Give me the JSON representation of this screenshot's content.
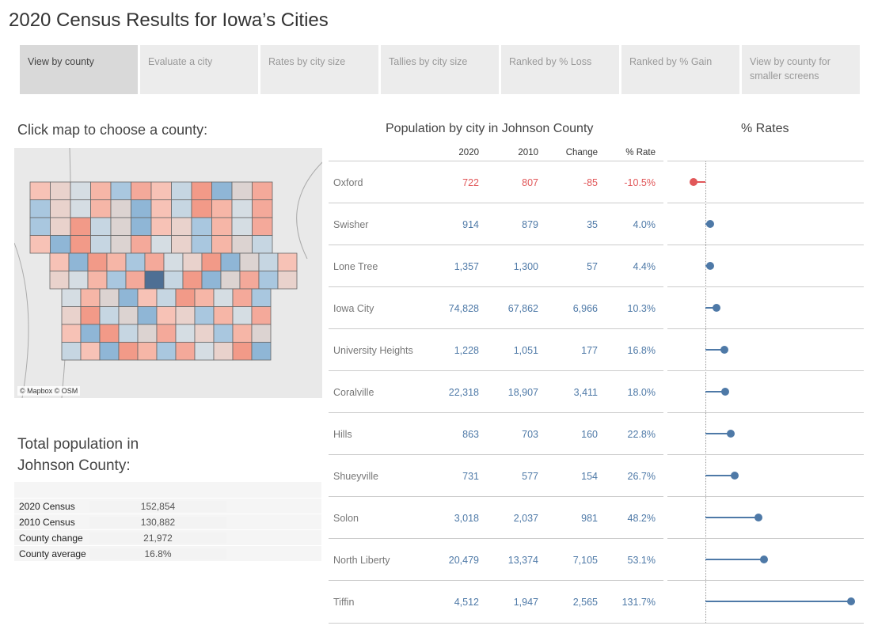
{
  "title": "2020 Census Results for Iowa’s Cities",
  "tabs": [
    "View by county",
    "Evaluate a city",
    "Rates by city size",
    "Tallies by city size",
    "Ranked by % Loss",
    "Ranked by % Gain",
    "View by county for smaller screens"
  ],
  "map": {
    "heading": "Click map to choose a county:",
    "attribution": "© Mapbox © OSM",
    "selected_county": "Johnson"
  },
  "totals": {
    "heading_line1": "Total population in",
    "heading_line2": "Johnson County:",
    "rows": [
      {
        "k": "2020 Census",
        "v": "152,854"
      },
      {
        "k": "2010 Census",
        "v": "130,882"
      },
      {
        "k": "County change",
        "v": "21,972"
      },
      {
        "k": "County average",
        "v": "16.8%"
      }
    ]
  },
  "table": {
    "heading": "Population by city in Johnson County",
    "columns": [
      "2020",
      "2010",
      "Change",
      "% Rate"
    ],
    "rows": [
      {
        "city": "Oxford",
        "p2020": "722",
        "p2010": "807",
        "change": "-85",
        "rate": "-10.5%",
        "r": -10.5
      },
      {
        "city": "Swisher",
        "p2020": "914",
        "p2010": "879",
        "change": "35",
        "rate": "4.0%",
        "r": 4.0
      },
      {
        "city": "Lone Tree",
        "p2020": "1,357",
        "p2010": "1,300",
        "change": "57",
        "rate": "4.4%",
        "r": 4.4
      },
      {
        "city": "Iowa City",
        "p2020": "74,828",
        "p2010": "67,862",
        "change": "6,966",
        "rate": "10.3%",
        "r": 10.3
      },
      {
        "city": "University Heights",
        "p2020": "1,228",
        "p2010": "1,051",
        "change": "177",
        "rate": "16.8%",
        "r": 16.8
      },
      {
        "city": "Coralville",
        "p2020": "22,318",
        "p2010": "18,907",
        "change": "3,411",
        "rate": "18.0%",
        "r": 18.0
      },
      {
        "city": "Hills",
        "p2020": "863",
        "p2010": "703",
        "change": "160",
        "rate": "22.8%",
        "r": 22.8
      },
      {
        "city": "Shueyville",
        "p2020": "731",
        "p2010": "577",
        "change": "154",
        "rate": "26.7%",
        "r": 26.7
      },
      {
        "city": "Solon",
        "p2020": "3,018",
        "p2010": "2,037",
        "change": "981",
        "rate": "48.2%",
        "r": 48.2
      },
      {
        "city": "North Liberty",
        "p2020": "20,479",
        "p2010": "13,374",
        "change": "7,105",
        "rate": "53.1%",
        "r": 53.1
      },
      {
        "city": "Tiffin",
        "p2020": "4,512",
        "p2010": "1,947",
        "change": "2,565",
        "rate": "131.7%",
        "r": 131.7
      }
    ]
  },
  "chart_data": {
    "type": "lollipop",
    "title": "% Rates",
    "xlim": [
      -20,
      150
    ],
    "colors": {
      "gain": "#4e79a7",
      "loss": "#e15759"
    }
  }
}
